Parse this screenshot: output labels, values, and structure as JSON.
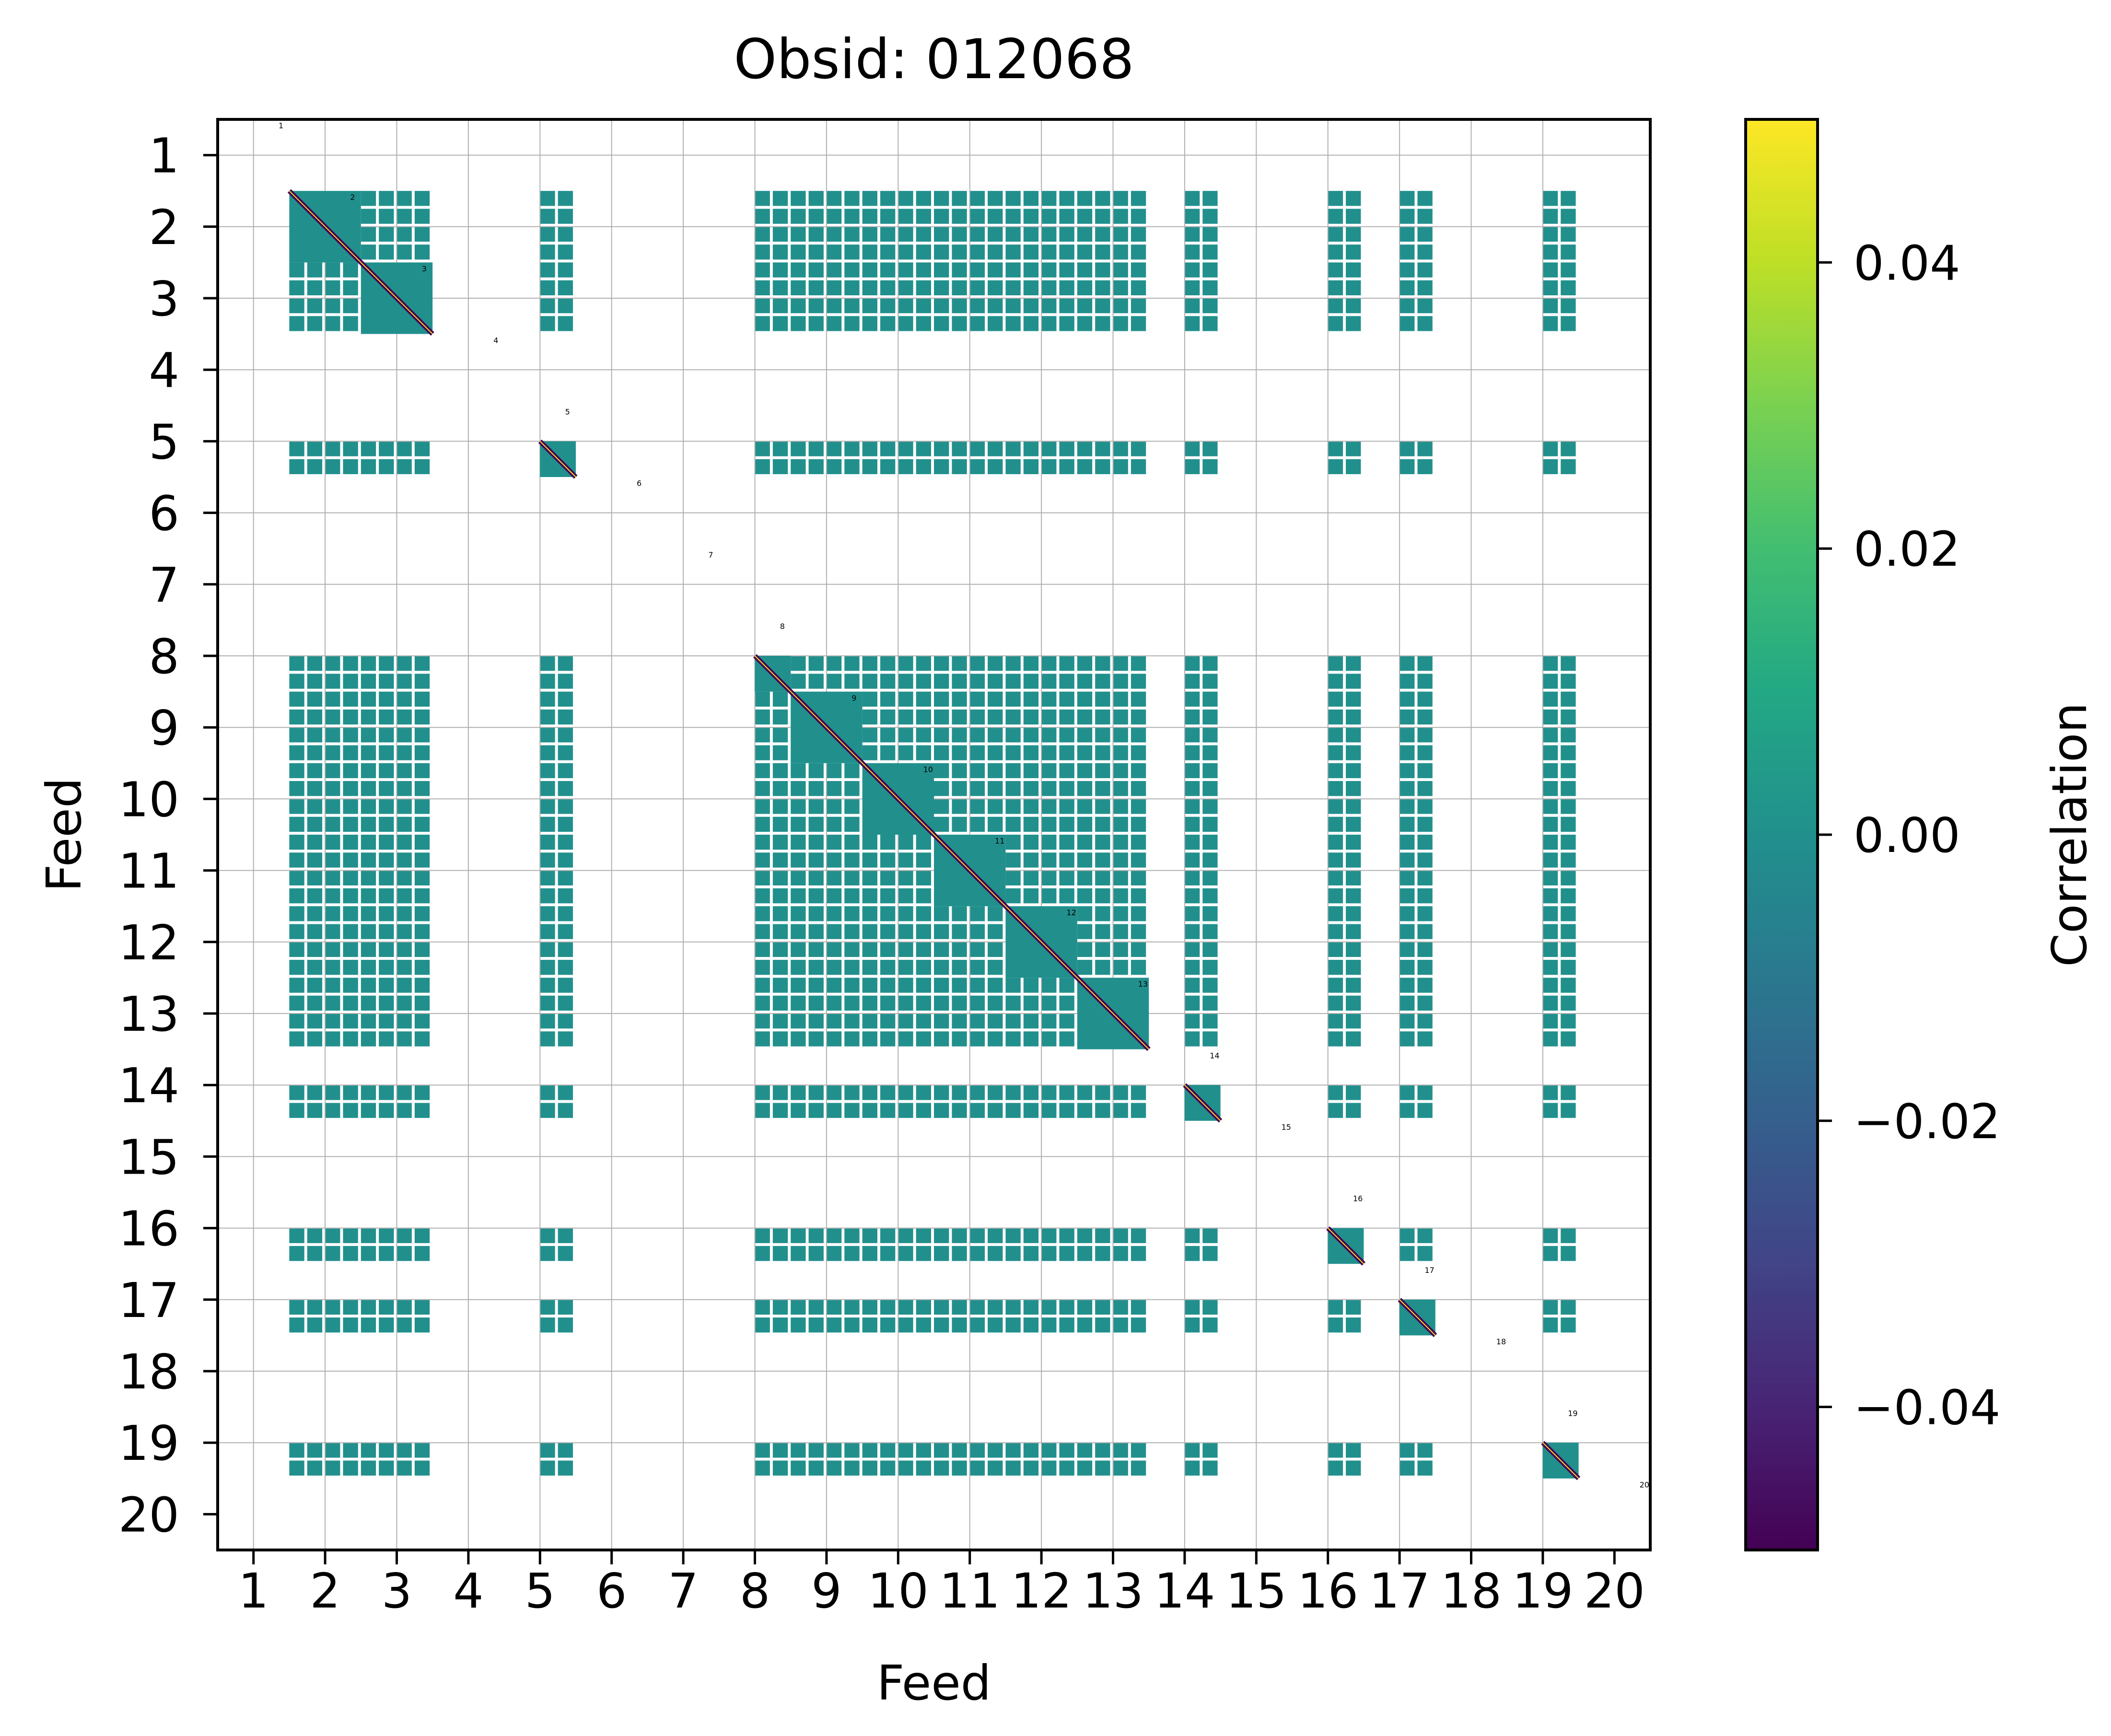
{
  "chart_data": {
    "type": "heatmap",
    "title": "Obsid: 012068",
    "xlabel": "Feed",
    "ylabel": "Feed",
    "x_ticks": [
      "1",
      "2",
      "3",
      "4",
      "5",
      "6",
      "7",
      "8",
      "9",
      "10",
      "11",
      "12",
      "13",
      "14",
      "15",
      "16",
      "17",
      "18",
      "19",
      "20"
    ],
    "y_ticks": [
      "1",
      "2",
      "3",
      "4",
      "5",
      "6",
      "7",
      "8",
      "9",
      "10",
      "11",
      "12",
      "13",
      "14",
      "15",
      "16",
      "17",
      "18",
      "19",
      "20"
    ],
    "feed_numbers": [
      1,
      2,
      3,
      4,
      5,
      6,
      7,
      8,
      9,
      10,
      11,
      12,
      13,
      14,
      15,
      16,
      17,
      18,
      19,
      20
    ],
    "sidebands_per_feed": 4,
    "sideband_labels": [
      "1",
      "2",
      "3",
      "4",
      "5",
      "6",
      "7",
      "8",
      "9",
      "10",
      "11",
      "12",
      "13",
      "14",
      "15",
      "16",
      "17",
      "18",
      "19",
      "20"
    ],
    "sideband_valid": [
      [
        0,
        0,
        0,
        0
      ],
      [
        1,
        1,
        1,
        1
      ],
      [
        1,
        1,
        1,
        1
      ],
      [
        0,
        0,
        0,
        0
      ],
      [
        0,
        0,
        1,
        1
      ],
      [
        0,
        0,
        0,
        0
      ],
      [
        0,
        0,
        0,
        0
      ],
      [
        0,
        0,
        1,
        1
      ],
      [
        1,
        1,
        1,
        1
      ],
      [
        1,
        1,
        1,
        1
      ],
      [
        1,
        1,
        1,
        1
      ],
      [
        1,
        1,
        1,
        1
      ],
      [
        1,
        1,
        1,
        1
      ],
      [
        0,
        0,
        1,
        1
      ],
      [
        0,
        0,
        0,
        0
      ],
      [
        0,
        0,
        1,
        1
      ],
      [
        0,
        0,
        1,
        1
      ],
      [
        0,
        0,
        0,
        0
      ],
      [
        0,
        0,
        1,
        1
      ],
      [
        0,
        0,
        0,
        0
      ]
    ],
    "off_diagonal_value": 0.0,
    "diagonal_values": [
      -0.05,
      0.05
    ],
    "colorbar": {
      "label": "Correlation",
      "vmin": -0.05,
      "vmax": 0.05,
      "ticks": [
        -0.04,
        -0.02,
        0.0,
        0.02,
        0.04
      ],
      "tick_labels": [
        "−0.04",
        "−0.02",
        "0.00",
        "0.02",
        "0.04"
      ],
      "colormap": "viridis"
    },
    "grid": true
  },
  "colors": {
    "valid_cell": "#21908d",
    "gridline": "#b0b0b0",
    "diag_low": "#440154",
    "diag_high": "#fde725"
  }
}
